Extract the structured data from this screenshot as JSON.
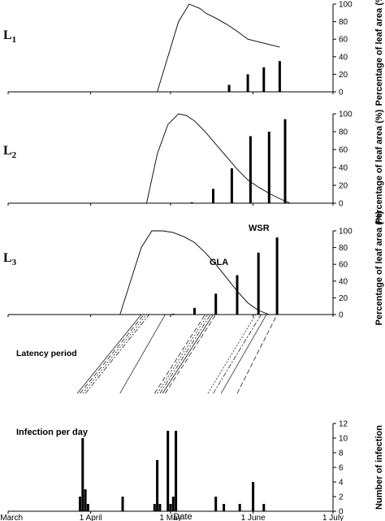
{
  "chart_data": [
    {
      "type": "bar",
      "panel_label": "L1",
      "panel_label_base": "L",
      "panel_label_sub": "1",
      "ylabel": "Percentage of leaf area (%)",
      "ylim": [
        0,
        100
      ],
      "yticks": [
        "0",
        "20",
        "40",
        "60",
        "80",
        "100"
      ],
      "series": [
        {
          "kind": "line",
          "x": [
            "1929-04-26",
            "1929-04-30",
            "1929-05-04",
            "1929-05-08",
            "1929-05-12",
            "1929-05-14",
            "1929-05-18",
            "1929-05-22",
            "1929-05-26",
            "1929-05-30",
            "1929-06-03",
            "1929-06-07",
            "1929-06-11"
          ],
          "values": [
            0,
            40,
            80,
            100,
            95,
            90,
            84,
            77,
            69,
            60,
            57,
            54,
            51
          ]
        },
        {
          "kind": "bar",
          "x": [
            "1929-05-23",
            "1929-05-30",
            "1929-06-05",
            "1929-06-11"
          ],
          "values": [
            8,
            20,
            28,
            35
          ]
        }
      ]
    },
    {
      "type": "bar",
      "panel_label": "L2",
      "panel_label_base": "L",
      "panel_label_sub": "2",
      "ylabel": "Percentage of leaf area (%)",
      "ylim": [
        0,
        100
      ],
      "yticks": [
        "0",
        "20",
        "40",
        "60",
        "80",
        "100"
      ],
      "series": [
        {
          "kind": "line",
          "x": [
            "1929-04-22",
            "1929-04-26",
            "1929-04-30",
            "1929-05-04",
            "1929-05-07",
            "1929-05-10",
            "1929-05-14",
            "1929-05-18",
            "1929-05-22",
            "1929-05-26",
            "1929-05-30",
            "1929-06-03",
            "1929-06-07",
            "1929-06-11",
            "1929-06-15"
          ],
          "values": [
            0,
            55,
            88,
            100,
            98,
            92,
            80,
            66,
            52,
            38,
            26,
            18,
            11,
            5,
            0
          ]
        },
        {
          "kind": "bar",
          "x": [
            "1929-05-09",
            "1929-05-17",
            "1929-05-24",
            "1929-05-31",
            "1929-06-07",
            "1929-06-13"
          ],
          "values": [
            1,
            16,
            39,
            75,
            80,
            94
          ]
        }
      ]
    },
    {
      "type": "bar",
      "panel_label": "L3",
      "panel_label_base": "L",
      "panel_label_sub": "3",
      "ylabel": "Percentage of leaf area (%)",
      "ylim": [
        0,
        100
      ],
      "yticks": [
        "0",
        "20",
        "40",
        "60",
        "80",
        "100"
      ],
      "annotations": [
        "GLA",
        "WSR"
      ],
      "series": [
        {
          "kind": "line",
          "x": [
            "1929-04-12",
            "1929-04-16",
            "1929-04-20",
            "1929-04-24",
            "1929-04-28",
            "1929-05-02",
            "1929-05-06",
            "1929-05-10",
            "1929-05-14",
            "1929-05-18",
            "1929-05-22",
            "1929-05-26",
            "1929-05-30",
            "1929-06-03",
            "1929-06-07"
          ],
          "values": [
            0,
            40,
            80,
            100,
            100,
            98,
            93,
            86,
            74,
            60,
            44,
            28,
            14,
            5,
            0
          ]
        },
        {
          "kind": "bar",
          "x": [
            "1929-05-02",
            "1929-05-10",
            "1929-05-18",
            "1929-05-26",
            "1929-06-03",
            "1929-06-10"
          ],
          "values": [
            1,
            8,
            25,
            47,
            74,
            92
          ]
        }
      ]
    },
    {
      "type": "line",
      "panel_label": "Latency period",
      "series": [
        {
          "kind": "line",
          "x": [
            "1929-03-27",
            "1929-04-20"
          ],
          "values": [
            0,
            100
          ]
        },
        {
          "kind": "line",
          "x": [
            "1929-03-28",
            "1929-04-21"
          ],
          "values": [
            0,
            100
          ]
        },
        {
          "kind": "line",
          "x": [
            "1929-03-29",
            "1929-04-22"
          ],
          "values": [
            0,
            100
          ]
        },
        {
          "kind": "line",
          "x": [
            "1929-03-30",
            "1929-04-23"
          ],
          "values": [
            0,
            100
          ]
        },
        {
          "kind": "line",
          "x": [
            "1929-04-12",
            "1929-04-29"
          ],
          "values": [
            0,
            100
          ]
        },
        {
          "kind": "line",
          "x": [
            "1929-04-25",
            "1929-05-14"
          ],
          "values": [
            0,
            100
          ]
        },
        {
          "kind": "line",
          "x": [
            "1929-04-26",
            "1929-05-15"
          ],
          "values": [
            0,
            100
          ]
        },
        {
          "kind": "line",
          "x": [
            "1929-04-27",
            "1929-05-16"
          ],
          "values": [
            0,
            100
          ]
        },
        {
          "kind": "line",
          "x": [
            "1929-04-28",
            "1929-05-17"
          ],
          "values": [
            0,
            100
          ]
        },
        {
          "kind": "line",
          "x": [
            "1929-04-29",
            "1929-05-18"
          ],
          "values": [
            0,
            100
          ]
        },
        {
          "kind": "line",
          "x": [
            "1929-05-15",
            "1929-06-02"
          ],
          "values": [
            0,
            100
          ]
        },
        {
          "kind": "line",
          "x": [
            "1929-05-17",
            "1929-06-04"
          ],
          "values": [
            0,
            100
          ]
        },
        {
          "kind": "line",
          "x": [
            "1929-05-20",
            "1929-06-06"
          ],
          "values": [
            0,
            100
          ]
        },
        {
          "kind": "line",
          "x": [
            "1929-05-26",
            "1929-06-10"
          ],
          "values": [
            0,
            100
          ]
        }
      ]
    },
    {
      "type": "bar",
      "panel_label": "Infection per day",
      "ylabel": "Number of infection",
      "xlabel": "Date",
      "ylim": [
        0,
        12
      ],
      "yticks": [
        "0",
        "2",
        "4",
        "6",
        "8",
        "10",
        "12"
      ],
      "xticks": [
        "1 March",
        "1 April",
        "1 May",
        "1 June",
        "1 July"
      ],
      "xtick_dates": [
        "1929-03-01",
        "1929-04-01",
        "1929-05-01",
        "1929-06-01",
        "1929-07-01"
      ],
      "x": [
        "1929-03-28",
        "1929-03-29",
        "1929-03-30",
        "1929-03-31",
        "1929-04-13",
        "1929-04-25",
        "1929-04-26",
        "1929-04-27",
        "1929-04-30",
        "1929-05-01",
        "1929-05-02",
        "1929-05-03",
        "1929-05-18",
        "1929-05-21",
        "1929-05-27",
        "1929-06-01",
        "1929-06-05"
      ],
      "values": [
        2,
        10,
        3,
        1,
        2,
        1,
        7,
        1,
        11,
        1,
        2,
        11,
        2,
        1,
        1,
        4,
        1
      ]
    }
  ]
}
